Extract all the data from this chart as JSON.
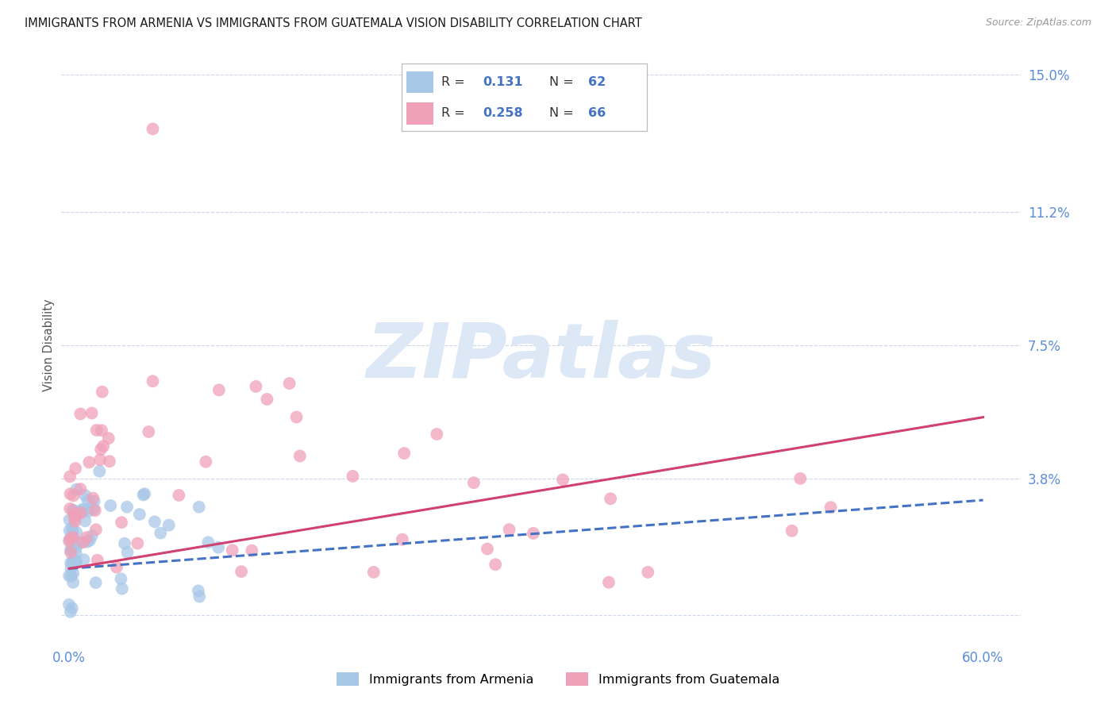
{
  "title": "IMMIGRANTS FROM ARMENIA VS IMMIGRANTS FROM GUATEMALA VISION DISABILITY CORRELATION CHART",
  "source": "Source: ZipAtlas.com",
  "ylabel": "Vision Disability",
  "yticks": [
    0.0,
    0.038,
    0.075,
    0.112,
    0.15
  ],
  "ytick_labels": [
    "",
    "3.8%",
    "7.5%",
    "11.2%",
    "15.0%"
  ],
  "xmin": -0.005,
  "xmax": 0.625,
  "ymin": -0.008,
  "ymax": 0.158,
  "armenia_R": 0.131,
  "armenia_N": 62,
  "guatemala_R": 0.258,
  "guatemala_N": 66,
  "armenia_color": "#a8c8e8",
  "guatemala_color": "#f0a0b8",
  "armenia_line_color": "#4472c4",
  "guatemala_line_color": "#d04070",
  "title_fontsize": 10.5,
  "watermark_color": "#dce8f5",
  "background_color": "#ffffff",
  "grid_color": "#c8d4e8",
  "ytick_label_color": "#5b8dd9",
  "xtick_label_color": "#5b8dd9",
  "arm_trend_start_y": 0.013,
  "arm_trend_end_y": 0.032,
  "gua_trend_start_y": 0.013,
  "gua_trend_end_y": 0.055
}
